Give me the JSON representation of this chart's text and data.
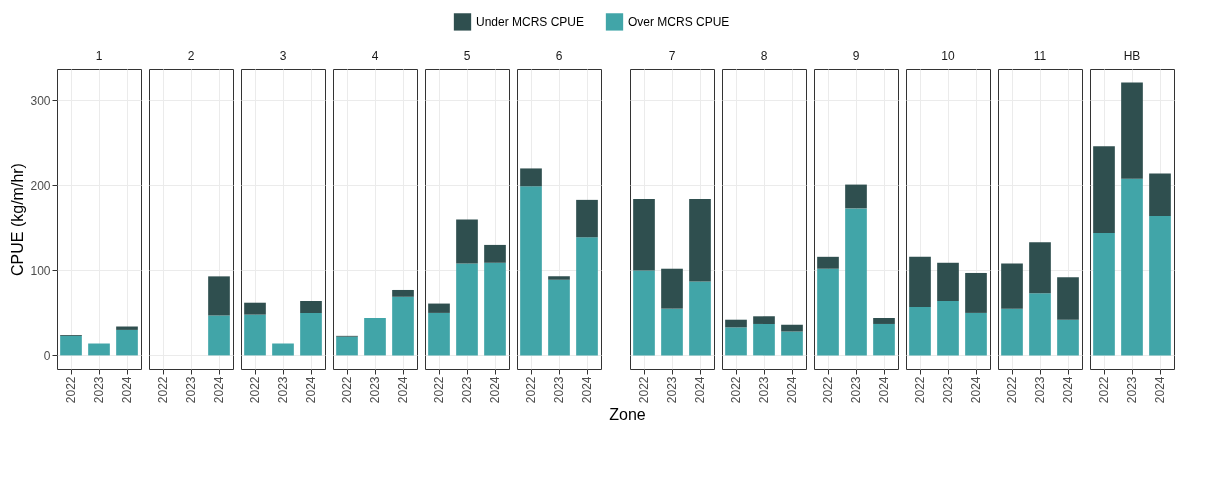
{
  "chart_data": [
    {
      "type": "bar",
      "title": "1",
      "categories": [
        "2022",
        "2023",
        "2024"
      ],
      "stacked": true,
      "ylabel": "CPUE (kg/m/hr)",
      "ylim": [
        -16,
        337
      ],
      "yticks": [
        0,
        100,
        200,
        300
      ],
      "grid": true,
      "legend": "top",
      "series": [
        {
          "name": "Over MCRS CPUE",
          "color": "#41a5a8",
          "values": [
            23,
            14,
            30
          ]
        },
        {
          "name": "Under MCRS CPUE",
          "color": "#2f4f4f",
          "values": [
            1,
            0,
            4
          ]
        }
      ]
    },
    {
      "type": "bar",
      "title": "2",
      "categories": [
        "2022",
        "2023",
        "2024"
      ],
      "stacked": true,
      "ylim": [
        -16,
        337
      ],
      "yticks": [
        0,
        100,
        200,
        300
      ],
      "grid": true,
      "tick_labels": "x",
      "series": [
        {
          "color": "#41a5a8",
          "values": [
            null,
            null,
            47
          ]
        },
        {
          "color": "#2f4f4f",
          "values": [
            null,
            null,
            46
          ]
        }
      ]
    },
    {
      "type": "bar",
      "title": "3",
      "categories": [
        "2022",
        "2023",
        "2024"
      ],
      "stacked": true,
      "ylim": [
        -16,
        337
      ],
      "yticks": [
        0,
        100,
        200,
        300
      ],
      "grid": true,
      "tick_labels": "x",
      "series": [
        {
          "color": "#41a5a8",
          "values": [
            48,
            14,
            50
          ]
        },
        {
          "color": "#2f4f4f",
          "values": [
            14,
            0,
            14
          ]
        }
      ]
    },
    {
      "type": "bar",
      "title": "4",
      "categories": [
        "2022",
        "2023",
        "2024"
      ],
      "stacked": true,
      "ylim": [
        -16,
        337
      ],
      "yticks": [
        0,
        100,
        200,
        300
      ],
      "grid": true,
      "tick_labels": "x",
      "series": [
        {
          "color": "#41a5a8",
          "values": [
            22,
            44,
            69
          ]
        },
        {
          "color": "#2f4f4f",
          "values": [
            1,
            0,
            8
          ]
        }
      ]
    },
    {
      "type": "bar",
      "title": "5",
      "categories": [
        "2022",
        "2023",
        "2024"
      ],
      "stacked": true,
      "ylim": [
        -16,
        337
      ],
      "yticks": [
        0,
        100,
        200,
        300
      ],
      "grid": true,
      "tick_labels": "x",
      "series": [
        {
          "color": "#41a5a8",
          "values": [
            50,
            108,
            109
          ]
        },
        {
          "color": "#2f4f4f",
          "values": [
            11,
            52,
            21
          ]
        }
      ]
    },
    {
      "type": "bar",
      "title": "6",
      "categories": [
        "2022",
        "2023",
        "2024"
      ],
      "stacked": true,
      "ylim": [
        -16,
        337
      ],
      "yticks": [
        0,
        100,
        200,
        300
      ],
      "grid": true,
      "tick_labels": "x",
      "series": [
        {
          "color": "#41a5a8",
          "values": [
            199,
            89,
            139
          ]
        },
        {
          "color": "#2f4f4f",
          "values": [
            21,
            4,
            44
          ]
        }
      ]
    },
    {
      "type": "bar",
      "title": "7",
      "categories": [
        "2022",
        "2023",
        "2024"
      ],
      "stacked": true,
      "xlabel": "Zone",
      "ylim": [
        -16,
        337
      ],
      "yticks": [
        0,
        100,
        200,
        300
      ],
      "grid": true,
      "tick_labels": "x",
      "series": [
        {
          "color": "#41a5a8",
          "values": [
            100,
            55,
            87
          ]
        },
        {
          "color": "#2f4f4f",
          "values": [
            84,
            47,
            97
          ]
        }
      ]
    },
    {
      "type": "bar",
      "title": "8",
      "categories": [
        "2022",
        "2023",
        "2024"
      ],
      "stacked": true,
      "ylim": [
        -16,
        337
      ],
      "yticks": [
        0,
        100,
        200,
        300
      ],
      "grid": true,
      "tick_labels": "x",
      "series": [
        {
          "color": "#41a5a8",
          "values": [
            33,
            37,
            28
          ]
        },
        {
          "color": "#2f4f4f",
          "values": [
            9,
            9,
            8
          ]
        }
      ]
    },
    {
      "type": "bar",
      "title": "9",
      "categories": [
        "2022",
        "2023",
        "2024"
      ],
      "stacked": true,
      "ylim": [
        -16,
        337
      ],
      "yticks": [
        0,
        100,
        200,
        300
      ],
      "grid": true,
      "tick_labels": "x",
      "series": [
        {
          "color": "#41a5a8",
          "values": [
            102,
            173,
            37
          ]
        },
        {
          "color": "#2f4f4f",
          "values": [
            14,
            28,
            7
          ]
        }
      ]
    },
    {
      "type": "bar",
      "title": "10",
      "categories": [
        "2022",
        "2023",
        "2024"
      ],
      "stacked": true,
      "ylim": [
        -16,
        337
      ],
      "yticks": [
        0,
        100,
        200,
        300
      ],
      "grid": true,
      "tick_labels": "x",
      "series": [
        {
          "color": "#41a5a8",
          "values": [
            57,
            64,
            50
          ]
        },
        {
          "color": "#2f4f4f",
          "values": [
            59,
            45,
            47
          ]
        }
      ]
    },
    {
      "type": "bar",
      "title": "11",
      "categories": [
        "2022",
        "2023",
        "2024"
      ],
      "stacked": true,
      "ylim": [
        -16,
        337
      ],
      "yticks": [
        0,
        100,
        200,
        300
      ],
      "grid": true,
      "tick_labels": "x",
      "series": [
        {
          "color": "#41a5a8",
          "values": [
            55,
            73,
            42
          ]
        },
        {
          "color": "#2f4f4f",
          "values": [
            53,
            60,
            50
          ]
        }
      ]
    },
    {
      "type": "bar",
      "title": "HB",
      "categories": [
        "2022",
        "2023",
        "2024"
      ],
      "stacked": true,
      "ylim": [
        -16,
        337
      ],
      "yticks": [
        0,
        100,
        200,
        300
      ],
      "grid": true,
      "tick_labels": "x",
      "series": [
        {
          "color": "#41a5a8",
          "values": [
            144,
            208,
            164
          ]
        },
        {
          "color": "#2f4f4f",
          "values": [
            102,
            113,
            50
          ]
        }
      ]
    }
  ]
}
